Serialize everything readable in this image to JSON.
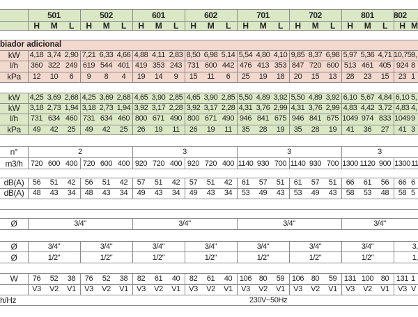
{
  "header": {
    "models": [
      "501",
      "502",
      "601",
      "602",
      "701",
      "702",
      "801",
      "802"
    ],
    "speeds": [
      "H",
      "M",
      "L"
    ]
  },
  "section_additional": {
    "title": "biador adicional",
    "rows": [
      {
        "unit": "kW",
        "values": [
          "4,18",
          "3,74",
          "2,90",
          "7,21",
          "6,33",
          "4,66",
          "4,88",
          "4,11",
          "2,83",
          "8,50",
          "6,98",
          "5,14",
          "5,54",
          "4,80",
          "4,10",
          "9,85",
          "8,37",
          "6,98",
          "5,97",
          "5,36",
          "4,71",
          "10,75",
          "9,"
        ]
      },
      {
        "unit": "l/h",
        "values": [
          "360",
          "322",
          "249",
          "619",
          "544",
          "401",
          "419",
          "353",
          "243",
          "731",
          "600",
          "442",
          "476",
          "413",
          "353",
          "847",
          "720",
          "600",
          "513",
          "461",
          "405",
          "924",
          "8"
        ]
      },
      {
        "unit": "kPa",
        "values": [
          "12",
          "10",
          "6",
          "9",
          "8",
          "4",
          "19",
          "14",
          "9",
          "15",
          "11",
          "6",
          "25",
          "19",
          "18",
          "20",
          "15",
          "13",
          "28",
          "23",
          "15",
          "23",
          "1"
        ]
      }
    ]
  },
  "section_main": {
    "rows": [
      {
        "unit": "kW",
        "values": [
          "4,25",
          "3,69",
          "2,68",
          "4,25",
          "3,69",
          "2,68",
          "4,65",
          "3,90",
          "2,85",
          "4,65",
          "3,90",
          "2,85",
          "5,50",
          "4,89",
          "3,92",
          "5,50",
          "4,89",
          "3,92",
          "6,10",
          "5,67",
          "4,84",
          "6,10",
          "5,"
        ]
      },
      {
        "unit": "kW",
        "values": [
          "3,18",
          "2,73",
          "1,94",
          "3,18",
          "2,73",
          "1,94",
          "3,92",
          "3,17",
          "2,28",
          "3,92",
          "3,17",
          "2,28",
          "4,31",
          "3,76",
          "2,99",
          "4,31",
          "3,76",
          "2,99",
          "4,83",
          "4,42",
          "3,72",
          "4,83",
          "4,"
        ]
      },
      {
        "unit": "l/h",
        "values": [
          "731",
          "634",
          "460",
          "731",
          "634",
          "460",
          "800",
          "671",
          "490",
          "800",
          "671",
          "490",
          "946",
          "841",
          "675",
          "946",
          "841",
          "675",
          "1049",
          "974",
          "833",
          "1049",
          "9"
        ]
      },
      {
        "unit": "kPa",
        "values": [
          "49",
          "42",
          "25",
          "49",
          "42",
          "25",
          "26",
          "19",
          "11",
          "26",
          "19",
          "11",
          "35",
          "28",
          "19",
          "35",
          "28",
          "19",
          "41",
          "36",
          "27",
          "41",
          "3"
        ]
      }
    ]
  },
  "fans": {
    "count_unit": "n°",
    "counts": [
      "2",
      "3",
      "3",
      "3"
    ],
    "flow_unit": "m3/h",
    "flow": [
      "720",
      "600",
      "400",
      "720",
      "600",
      "400",
      "920",
      "720",
      "400",
      "920",
      "720",
      "400",
      "1140",
      "930",
      "700",
      "1140",
      "930",
      "700",
      "1300",
      "1120",
      "900",
      "1300",
      "11"
    ]
  },
  "noise": {
    "rows": [
      {
        "unit": "dB(A)",
        "values": [
          "56",
          "51",
          "42",
          "56",
          "51",
          "42",
          "57",
          "51",
          "42",
          "57",
          "51",
          "42",
          "61",
          "57",
          "51",
          "61",
          "57",
          "51",
          "66",
          "61",
          "56",
          "66",
          "6"
        ]
      },
      {
        "unit": "dB(A)",
        "values": [
          "48",
          "43",
          "34",
          "48",
          "43",
          "34",
          "49",
          "43",
          "34",
          "49",
          "43",
          "34",
          "53",
          "49",
          "43",
          "53",
          "49",
          "43",
          "58",
          "53",
          "48",
          "58",
          "5"
        ]
      }
    ]
  },
  "drain": {
    "unit": "Ø",
    "values": [
      "3/4\"",
      "3/4\"",
      "3/4\"",
      "3/4\""
    ]
  },
  "connections": {
    "rows": [
      {
        "unit": "Ø",
        "values": [
          "3/4\"",
          "3/4\"",
          "3/4\"",
          "3/4\"",
          "3/4\"",
          "3/4\"",
          "3/4\"",
          "3,"
        ]
      },
      {
        "unit": "Ø",
        "values": [
          "1/2\"",
          "1/2\"",
          "1/2\"",
          "1/2\"",
          "1/2\"",
          "1/2\"",
          "1/2\"",
          "1,"
        ]
      }
    ]
  },
  "electrical": {
    "power_unit": "W",
    "power": [
      "76",
      "52",
      "38",
      "76",
      "52",
      "38",
      "82",
      "61",
      "40",
      "82",
      "61",
      "40",
      "106",
      "80",
      "59",
      "106",
      "80",
      "59",
      "131",
      "100",
      "80",
      "131",
      "1"
    ],
    "speed_labels": [
      "V3",
      "V2",
      "V1",
      "V3",
      "V2",
      "V1",
      "V3",
      "V2",
      "V1",
      "V3",
      "V2",
      "V1",
      "V3",
      "V2",
      "V1",
      "V3",
      "V2",
      "V1",
      "V3",
      "V2",
      "V1",
      "V3",
      "V"
    ],
    "supply_unit": "h/Hz",
    "supply": "230V~50Hz"
  },
  "colors": {
    "header_green": "#dbe8c6",
    "additional_pink": "#f3d8cd",
    "grid": "#8a8a8a"
  }
}
